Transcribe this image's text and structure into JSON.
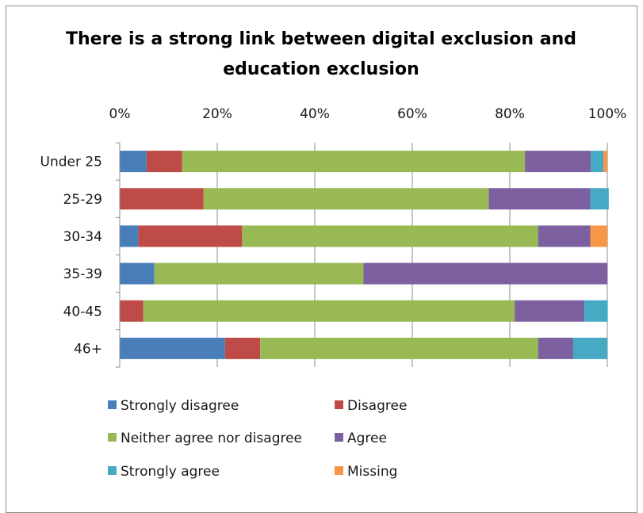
{
  "chart_data": {
    "type": "bar",
    "orientation": "horizontal",
    "stacked": "percent",
    "title_lines": [
      "There is a strong link between digital exclusion and",
      "education exclusion"
    ],
    "categories": [
      "Under 25",
      "25-29",
      "30-34",
      "35-39",
      "40-45",
      "46+"
    ],
    "x_ticks": [
      "0%",
      "20%",
      "40%",
      "60%",
      "80%",
      "100%"
    ],
    "xlim": [
      0,
      100
    ],
    "x_axis_position": "top",
    "grid": true,
    "legend_position": "bottom",
    "series": [
      {
        "name": "Strongly disagree",
        "color": "#4a7ebb",
        "values": [
          5.5,
          0,
          3.8,
          7.1,
          0,
          21.6
        ]
      },
      {
        "name": "Disagree",
        "color": "#be4b48",
        "values": [
          7.3,
          17.2,
          21.3,
          0,
          4.8,
          7.2
        ]
      },
      {
        "name": "Neither agree nor disagree",
        "color": "#98b954",
        "values": [
          70.3,
          58.5,
          60.7,
          42.9,
          76.2,
          57.0
        ]
      },
      {
        "name": "Agree",
        "color": "#7d60a0",
        "values": [
          13.5,
          20.8,
          10.7,
          50.0,
          14.3,
          7.2
        ]
      },
      {
        "name": "Strongly agree",
        "color": "#46aac5",
        "values": [
          2.6,
          3.8,
          0,
          0,
          4.8,
          7.0
        ]
      },
      {
        "name": "Missing",
        "color": "#f79646",
        "values": [
          0.8,
          0,
          3.5,
          0,
          0,
          0
        ]
      }
    ]
  }
}
